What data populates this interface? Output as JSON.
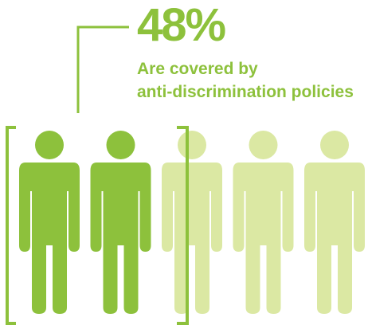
{
  "colors": {
    "accent": "#8dc13c",
    "faded": "#dbe8a3"
  },
  "chart_data": {
    "type": "pictogram",
    "percent_value": 48,
    "total_figures": 5,
    "filled_figures": 2.4,
    "headline": "48%",
    "caption_lines": [
      "Are covered by",
      "anti-discrimination policies"
    ]
  }
}
